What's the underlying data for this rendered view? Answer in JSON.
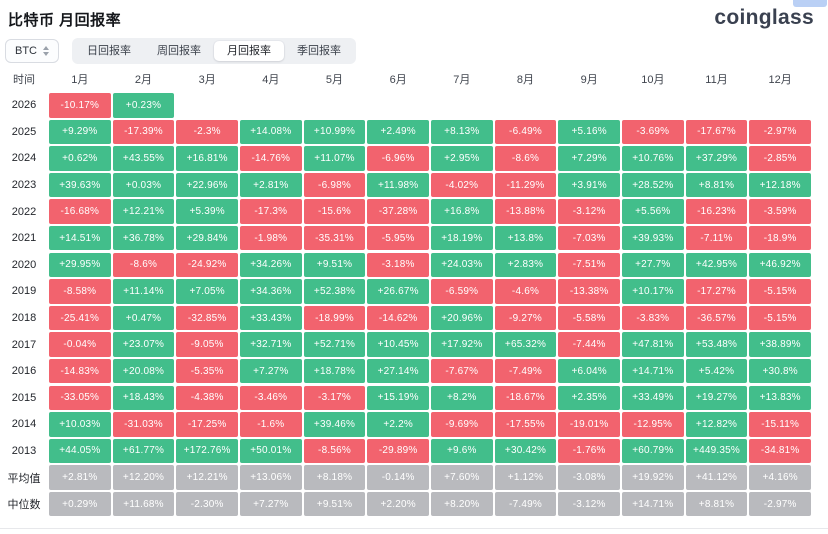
{
  "header": {
    "title": "比特币 月回报率",
    "logo": "coinglass"
  },
  "controls": {
    "symbol": "BTC",
    "tabs": [
      {
        "label": "日回报率",
        "selected": false
      },
      {
        "label": "周回报率",
        "selected": false
      },
      {
        "label": "月回报率",
        "selected": true
      },
      {
        "label": "季回报率",
        "selected": false
      }
    ]
  },
  "colors": {
    "green": "#42BE8B",
    "red": "#F2636E",
    "gray": "#B9BABE"
  },
  "table": {
    "time_header": "时间",
    "month_headers": [
      "1月",
      "2月",
      "3月",
      "4月",
      "5月",
      "6月",
      "7月",
      "8月",
      "9月",
      "10月",
      "11月",
      "12月"
    ],
    "rows": [
      {
        "label": "2026",
        "cells": [
          {
            "v": "-10.17%",
            "k": "red"
          },
          {
            "v": "+0.23%",
            "k": "green"
          },
          null,
          null,
          null,
          null,
          null,
          null,
          null,
          null,
          null,
          null
        ]
      },
      {
        "label": "2025",
        "cells": [
          {
            "v": "+9.29%",
            "k": "green"
          },
          {
            "v": "-17.39%",
            "k": "red"
          },
          {
            "v": "-2.3%",
            "k": "red"
          },
          {
            "v": "+14.08%",
            "k": "green"
          },
          {
            "v": "+10.99%",
            "k": "green"
          },
          {
            "v": "+2.49%",
            "k": "green"
          },
          {
            "v": "+8.13%",
            "k": "green"
          },
          {
            "v": "-6.49%",
            "k": "red"
          },
          {
            "v": "+5.16%",
            "k": "green"
          },
          {
            "v": "-3.69%",
            "k": "red"
          },
          {
            "v": "-17.67%",
            "k": "red"
          },
          {
            "v": "-2.97%",
            "k": "red"
          }
        ]
      },
      {
        "label": "2024",
        "cells": [
          {
            "v": "+0.62%",
            "k": "green"
          },
          {
            "v": "+43.55%",
            "k": "green"
          },
          {
            "v": "+16.81%",
            "k": "green"
          },
          {
            "v": "-14.76%",
            "k": "red"
          },
          {
            "v": "+11.07%",
            "k": "green"
          },
          {
            "v": "-6.96%",
            "k": "red"
          },
          {
            "v": "+2.95%",
            "k": "green"
          },
          {
            "v": "-8.6%",
            "k": "red"
          },
          {
            "v": "+7.29%",
            "k": "green"
          },
          {
            "v": "+10.76%",
            "k": "green"
          },
          {
            "v": "+37.29%",
            "k": "green"
          },
          {
            "v": "-2.85%",
            "k": "red"
          }
        ]
      },
      {
        "label": "2023",
        "cells": [
          {
            "v": "+39.63%",
            "k": "green"
          },
          {
            "v": "+0.03%",
            "k": "green"
          },
          {
            "v": "+22.96%",
            "k": "green"
          },
          {
            "v": "+2.81%",
            "k": "green"
          },
          {
            "v": "-6.98%",
            "k": "red"
          },
          {
            "v": "+11.98%",
            "k": "green"
          },
          {
            "v": "-4.02%",
            "k": "red"
          },
          {
            "v": "-11.29%",
            "k": "red"
          },
          {
            "v": "+3.91%",
            "k": "green"
          },
          {
            "v": "+28.52%",
            "k": "green"
          },
          {
            "v": "+8.81%",
            "k": "green"
          },
          {
            "v": "+12.18%",
            "k": "green"
          }
        ]
      },
      {
        "label": "2022",
        "cells": [
          {
            "v": "-16.68%",
            "k": "red"
          },
          {
            "v": "+12.21%",
            "k": "green"
          },
          {
            "v": "+5.39%",
            "k": "green"
          },
          {
            "v": "-17.3%",
            "k": "red"
          },
          {
            "v": "-15.6%",
            "k": "red"
          },
          {
            "v": "-37.28%",
            "k": "red"
          },
          {
            "v": "+16.8%",
            "k": "green"
          },
          {
            "v": "-13.88%",
            "k": "red"
          },
          {
            "v": "-3.12%",
            "k": "red"
          },
          {
            "v": "+5.56%",
            "k": "green"
          },
          {
            "v": "-16.23%",
            "k": "red"
          },
          {
            "v": "-3.59%",
            "k": "red"
          }
        ]
      },
      {
        "label": "2021",
        "cells": [
          {
            "v": "+14.51%",
            "k": "green"
          },
          {
            "v": "+36.78%",
            "k": "green"
          },
          {
            "v": "+29.84%",
            "k": "green"
          },
          {
            "v": "-1.98%",
            "k": "red"
          },
          {
            "v": "-35.31%",
            "k": "red"
          },
          {
            "v": "-5.95%",
            "k": "red"
          },
          {
            "v": "+18.19%",
            "k": "green"
          },
          {
            "v": "+13.8%",
            "k": "green"
          },
          {
            "v": "-7.03%",
            "k": "red"
          },
          {
            "v": "+39.93%",
            "k": "green"
          },
          {
            "v": "-7.11%",
            "k": "red"
          },
          {
            "v": "-18.9%",
            "k": "red"
          }
        ]
      },
      {
        "label": "2020",
        "cells": [
          {
            "v": "+29.95%",
            "k": "green"
          },
          {
            "v": "-8.6%",
            "k": "red"
          },
          {
            "v": "-24.92%",
            "k": "red"
          },
          {
            "v": "+34.26%",
            "k": "green"
          },
          {
            "v": "+9.51%",
            "k": "green"
          },
          {
            "v": "-3.18%",
            "k": "red"
          },
          {
            "v": "+24.03%",
            "k": "green"
          },
          {
            "v": "+2.83%",
            "k": "green"
          },
          {
            "v": "-7.51%",
            "k": "red"
          },
          {
            "v": "+27.7%",
            "k": "green"
          },
          {
            "v": "+42.95%",
            "k": "green"
          },
          {
            "v": "+46.92%",
            "k": "green"
          }
        ]
      },
      {
        "label": "2019",
        "cells": [
          {
            "v": "-8.58%",
            "k": "red"
          },
          {
            "v": "+11.14%",
            "k": "green"
          },
          {
            "v": "+7.05%",
            "k": "green"
          },
          {
            "v": "+34.36%",
            "k": "green"
          },
          {
            "v": "+52.38%",
            "k": "green"
          },
          {
            "v": "+26.67%",
            "k": "green"
          },
          {
            "v": "-6.59%",
            "k": "red"
          },
          {
            "v": "-4.6%",
            "k": "red"
          },
          {
            "v": "-13.38%",
            "k": "red"
          },
          {
            "v": "+10.17%",
            "k": "green"
          },
          {
            "v": "-17.27%",
            "k": "red"
          },
          {
            "v": "-5.15%",
            "k": "red"
          }
        ]
      },
      {
        "label": "2018",
        "cells": [
          {
            "v": "-25.41%",
            "k": "red"
          },
          {
            "v": "+0.47%",
            "k": "green"
          },
          {
            "v": "-32.85%",
            "k": "red"
          },
          {
            "v": "+33.43%",
            "k": "green"
          },
          {
            "v": "-18.99%",
            "k": "red"
          },
          {
            "v": "-14.62%",
            "k": "red"
          },
          {
            "v": "+20.96%",
            "k": "green"
          },
          {
            "v": "-9.27%",
            "k": "red"
          },
          {
            "v": "-5.58%",
            "k": "red"
          },
          {
            "v": "-3.83%",
            "k": "red"
          },
          {
            "v": "-36.57%",
            "k": "red"
          },
          {
            "v": "-5.15%",
            "k": "red"
          }
        ]
      },
      {
        "label": "2017",
        "cells": [
          {
            "v": "-0.04%",
            "k": "red"
          },
          {
            "v": "+23.07%",
            "k": "green"
          },
          {
            "v": "-9.05%",
            "k": "red"
          },
          {
            "v": "+32.71%",
            "k": "green"
          },
          {
            "v": "+52.71%",
            "k": "green"
          },
          {
            "v": "+10.45%",
            "k": "green"
          },
          {
            "v": "+17.92%",
            "k": "green"
          },
          {
            "v": "+65.32%",
            "k": "green"
          },
          {
            "v": "-7.44%",
            "k": "red"
          },
          {
            "v": "+47.81%",
            "k": "green"
          },
          {
            "v": "+53.48%",
            "k": "green"
          },
          {
            "v": "+38.89%",
            "k": "green"
          }
        ]
      },
      {
        "label": "2016",
        "cells": [
          {
            "v": "-14.83%",
            "k": "red"
          },
          {
            "v": "+20.08%",
            "k": "green"
          },
          {
            "v": "-5.35%",
            "k": "red"
          },
          {
            "v": "+7.27%",
            "k": "green"
          },
          {
            "v": "+18.78%",
            "k": "green"
          },
          {
            "v": "+27.14%",
            "k": "green"
          },
          {
            "v": "-7.67%",
            "k": "red"
          },
          {
            "v": "-7.49%",
            "k": "red"
          },
          {
            "v": "+6.04%",
            "k": "green"
          },
          {
            "v": "+14.71%",
            "k": "green"
          },
          {
            "v": "+5.42%",
            "k": "green"
          },
          {
            "v": "+30.8%",
            "k": "green"
          }
        ]
      },
      {
        "label": "2015",
        "cells": [
          {
            "v": "-33.05%",
            "k": "red"
          },
          {
            "v": "+18.43%",
            "k": "green"
          },
          {
            "v": "-4.38%",
            "k": "red"
          },
          {
            "v": "-3.46%",
            "k": "red"
          },
          {
            "v": "-3.17%",
            "k": "red"
          },
          {
            "v": "+15.19%",
            "k": "green"
          },
          {
            "v": "+8.2%",
            "k": "green"
          },
          {
            "v": "-18.67%",
            "k": "red"
          },
          {
            "v": "+2.35%",
            "k": "green"
          },
          {
            "v": "+33.49%",
            "k": "green"
          },
          {
            "v": "+19.27%",
            "k": "green"
          },
          {
            "v": "+13.83%",
            "k": "green"
          }
        ]
      },
      {
        "label": "2014",
        "cells": [
          {
            "v": "+10.03%",
            "k": "green"
          },
          {
            "v": "-31.03%",
            "k": "red"
          },
          {
            "v": "-17.25%",
            "k": "red"
          },
          {
            "v": "-1.6%",
            "k": "red"
          },
          {
            "v": "+39.46%",
            "k": "green"
          },
          {
            "v": "+2.2%",
            "k": "green"
          },
          {
            "v": "-9.69%",
            "k": "red"
          },
          {
            "v": "-17.55%",
            "k": "red"
          },
          {
            "v": "-19.01%",
            "k": "red"
          },
          {
            "v": "-12.95%",
            "k": "red"
          },
          {
            "v": "+12.82%",
            "k": "green"
          },
          {
            "v": "-15.11%",
            "k": "red"
          }
        ]
      },
      {
        "label": "2013",
        "cells": [
          {
            "v": "+44.05%",
            "k": "green"
          },
          {
            "v": "+61.77%",
            "k": "green"
          },
          {
            "v": "+172.76%",
            "k": "green"
          },
          {
            "v": "+50.01%",
            "k": "green"
          },
          {
            "v": "-8.56%",
            "k": "red"
          },
          {
            "v": "-29.89%",
            "k": "red"
          },
          {
            "v": "+9.6%",
            "k": "green"
          },
          {
            "v": "+30.42%",
            "k": "green"
          },
          {
            "v": "-1.76%",
            "k": "red"
          },
          {
            "v": "+60.79%",
            "k": "green"
          },
          {
            "v": "+449.35%",
            "k": "green"
          },
          {
            "v": "-34.81%",
            "k": "red"
          }
        ]
      },
      {
        "label": "平均值",
        "cells": [
          {
            "v": "+2.81%",
            "k": "gray"
          },
          {
            "v": "+12.20%",
            "k": "gray"
          },
          {
            "v": "+12.21%",
            "k": "gray"
          },
          {
            "v": "+13.06%",
            "k": "gray"
          },
          {
            "v": "+8.18%",
            "k": "gray"
          },
          {
            "v": "-0.14%",
            "k": "gray"
          },
          {
            "v": "+7.60%",
            "k": "gray"
          },
          {
            "v": "+1.12%",
            "k": "gray"
          },
          {
            "v": "-3.08%",
            "k": "gray"
          },
          {
            "v": "+19.92%",
            "k": "gray"
          },
          {
            "v": "+41.12%",
            "k": "gray"
          },
          {
            "v": "+4.16%",
            "k": "gray"
          }
        ]
      },
      {
        "label": "中位数",
        "cells": [
          {
            "v": "+0.29%",
            "k": "gray"
          },
          {
            "v": "+11.68%",
            "k": "gray"
          },
          {
            "v": "-2.30%",
            "k": "gray"
          },
          {
            "v": "+7.27%",
            "k": "gray"
          },
          {
            "v": "+9.51%",
            "k": "gray"
          },
          {
            "v": "+2.20%",
            "k": "gray"
          },
          {
            "v": "+8.20%",
            "k": "gray"
          },
          {
            "v": "-7.49%",
            "k": "gray"
          },
          {
            "v": "-3.12%",
            "k": "gray"
          },
          {
            "v": "+14.71%",
            "k": "gray"
          },
          {
            "v": "+8.81%",
            "k": "gray"
          },
          {
            "v": "-2.97%",
            "k": "gray"
          }
        ]
      }
    ]
  }
}
